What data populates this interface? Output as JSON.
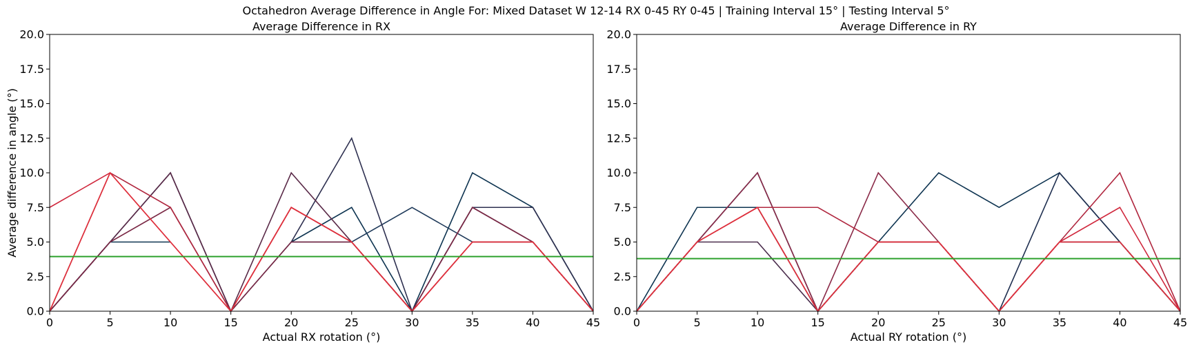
{
  "suptitle": "Octahedron Average Difference in Angle For: Mixed Dataset W 12-14 RX 0-45 RY 0-45 | Training Interval 15° | Testing Interval 5°",
  "chart_data": [
    {
      "type": "line",
      "title": "Average Difference in RX",
      "xlabel": "Actual RX rotation (°)",
      "ylabel": "Average difference in angle (°)",
      "xlim": [
        0,
        45
      ],
      "ylim": [
        0,
        20
      ],
      "xticks": [
        0,
        5,
        10,
        15,
        20,
        25,
        30,
        35,
        40,
        45
      ],
      "yticks": [
        "0.0",
        "2.5",
        "5.0",
        "7.5",
        "10.0",
        "12.5",
        "15.0",
        "17.5",
        "20.0"
      ],
      "x": [
        0,
        5,
        10,
        15,
        20,
        25,
        30,
        35,
        40,
        45
      ],
      "reference_line": {
        "y": 3.95,
        "color": "#2ca02c"
      },
      "series": [
        {
          "color": "#0d3350",
          "values": [
            0,
            5,
            5,
            null,
            5,
            7.5,
            0,
            10,
            7.5,
            0
          ]
        },
        {
          "color": "#1f3a5a",
          "values": [
            null,
            null,
            null,
            null,
            5,
            5,
            7.5,
            5,
            5,
            0
          ]
        },
        {
          "color": "#2e3050",
          "values": [
            0,
            5,
            10,
            0,
            5,
            12.5,
            0,
            7.5,
            7.5,
            0
          ]
        },
        {
          "color": "#5a2a48",
          "values": [
            0,
            5,
            10,
            0,
            10,
            5,
            0,
            7.5,
            5,
            0
          ]
        },
        {
          "color": "#7a2845",
          "values": [
            0,
            5,
            7.5,
            0,
            5,
            5,
            0,
            7.5,
            5,
            0
          ]
        },
        {
          "color": "#b0273f",
          "values": [
            0,
            10,
            7.5,
            0,
            7.5,
            5,
            0,
            5,
            5,
            0
          ]
        },
        {
          "color": "#d0283d",
          "values": [
            7.5,
            10,
            5,
            0,
            7.5,
            5,
            0,
            5,
            5,
            0
          ]
        },
        {
          "color": "#e0303c",
          "values": [
            0,
            10,
            5,
            0,
            7.5,
            5,
            0,
            5,
            5,
            0
          ]
        }
      ]
    },
    {
      "type": "line",
      "title": "Average Difference in RY",
      "xlabel": "Actual RY rotation (°)",
      "ylabel": "",
      "xlim": [
        0,
        45
      ],
      "ylim": [
        0,
        20
      ],
      "xticks": [
        0,
        5,
        10,
        15,
        20,
        25,
        30,
        35,
        40,
        45
      ],
      "yticks": [
        "0.0",
        "2.5",
        "5.0",
        "7.5",
        "10.0",
        "12.5",
        "15.0",
        "17.5",
        "20.0"
      ],
      "x": [
        0,
        5,
        10,
        15,
        20,
        25,
        30,
        35,
        40,
        45
      ],
      "reference_line": {
        "y": 3.8,
        "color": "#2ca02c"
      },
      "series": [
        {
          "color": "#0d3350",
          "values": [
            0,
            7.5,
            7.5,
            0,
            5,
            10,
            7.5,
            10,
            5,
            0
          ]
        },
        {
          "color": "#1f2f50",
          "values": [
            0,
            5,
            10,
            0,
            5,
            5,
            0,
            10,
            5,
            0
          ]
        },
        {
          "color": "#4a2c4c",
          "values": [
            0,
            5,
            5,
            0,
            5,
            5,
            0,
            5,
            5,
            0
          ]
        },
        {
          "color": "#8a2a48",
          "values": [
            0,
            5,
            10,
            0,
            10,
            5,
            0,
            5,
            5,
            0
          ]
        },
        {
          "color": "#b0273f",
          "values": [
            0,
            5,
            7.5,
            7.5,
            5,
            5,
            0,
            5,
            10,
            0
          ]
        },
        {
          "color": "#d0283d",
          "values": [
            0,
            5,
            7.5,
            0,
            5,
            5,
            0,
            5,
            7.5,
            0
          ]
        },
        {
          "color": "#e0303c",
          "values": [
            0,
            5,
            7.5,
            0,
            5,
            5,
            0,
            5,
            5,
            0
          ]
        }
      ]
    }
  ]
}
